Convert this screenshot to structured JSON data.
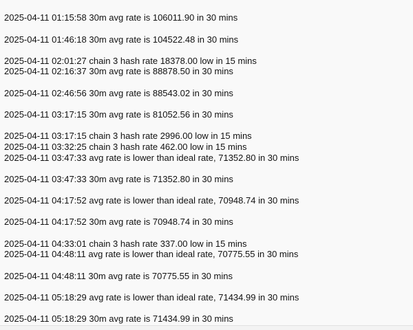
{
  "log": {
    "lines": [
      "",
      "2025-04-11 01:15:58 30m avg rate is 106011.90 in 30 mins",
      "",
      "2025-04-11 01:46:18 30m avg rate is 104522.48 in 30 mins",
      "",
      "2025-04-11 02:01:27 chain 3 hash rate 18378.00 low in 15 mins",
      "2025-04-11 02:16:37 30m avg rate is 88878.50 in 30 mins",
      "",
      "2025-04-11 02:46:56 30m avg rate is 88543.02 in 30 mins",
      "",
      "2025-04-11 03:17:15 30m avg rate is 81052.56 in 30 mins",
      "",
      "2025-04-11 03:17:15 chain 3 hash rate 2996.00 low in 15 mins",
      "2025-04-11 03:32:25 chain 3 hash rate 462.00 low in 15 mins",
      "2025-04-11 03:47:33 avg rate is lower than ideal rate, 71352.80 in 30 mins",
      "",
      "2025-04-11 03:47:33 30m avg rate is 71352.80 in 30 mins",
      "",
      "2025-04-11 04:17:52 avg rate is lower than ideal rate, 70948.74 in 30 mins",
      "",
      "2025-04-11 04:17:52 30m avg rate is 70948.74 in 30 mins",
      "",
      "2025-04-11 04:33:01 chain 3 hash rate 337.00 low in 15 mins",
      "2025-04-11 04:48:11 avg rate is lower than ideal rate, 70775.55 in 30 mins",
      "",
      "2025-04-11 04:48:11 30m avg rate is 70775.55 in 30 mins",
      "",
      "2025-04-11 05:18:29 avg rate is lower than ideal rate, 71434.99 in 30 mins",
      "",
      "2025-04-11 05:18:29 30m avg rate is 71434.99 in 30 mins"
    ]
  }
}
